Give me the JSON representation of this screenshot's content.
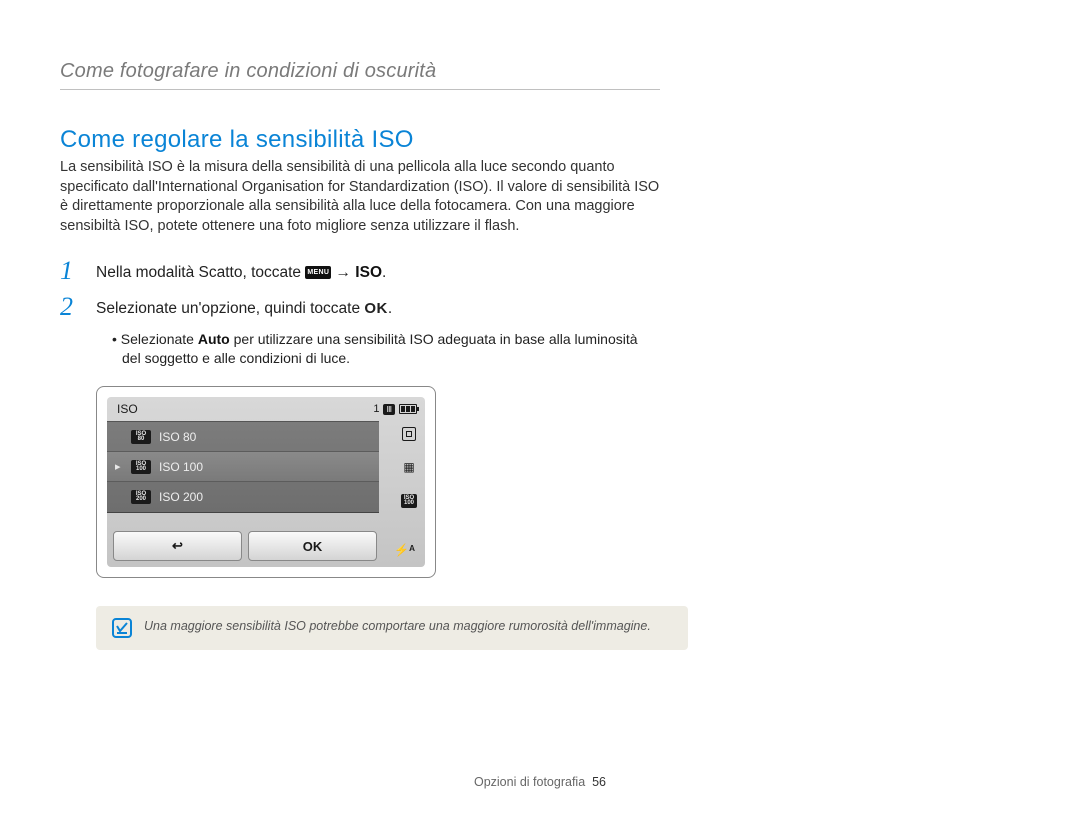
{
  "chapter": {
    "title": "Come fotografare in condizioni di oscurità"
  },
  "section": {
    "title": "Come regolare la sensibilità ISO"
  },
  "intro": "La sensibilità ISO è la misura della sensibilità di una pellicola alla luce secondo quanto specificato dall'International Organisation for Standardization (ISO). Il valore di sensibilità ISO è direttamente proporzionale alla sensibilità alla luce della fotocamera. Con una maggiore sensibiltà ISO, potete ottenere una foto migliore senza utilizzare il flash.",
  "steps": {
    "s1": {
      "num": "1",
      "pre": "Nella modalità Scatto, toccate ",
      "menu": "MENU",
      "arrow": " → ",
      "target": "ISO",
      "post": "."
    },
    "s2": {
      "num": "2",
      "pre": "Selezionate un'opzione, quindi toccate ",
      "ok": "OK",
      "post": "."
    },
    "s2_bullet": {
      "pre": "Selezionate ",
      "bold": "Auto",
      "post": " per utilizzare una sensibilità ISO adeguata in base alla luminosità del soggetto e alle condizioni di luce."
    }
  },
  "lcd": {
    "title": "ISO",
    "shots": "1",
    "items": [
      {
        "chipTop": "ISO",
        "chipBot": "80",
        "label": "ISO 80",
        "selected": false
      },
      {
        "chipTop": "ISO",
        "chipBot": "100",
        "label": "ISO 100",
        "selected": true
      },
      {
        "chipTop": "ISO",
        "chipBot": "200",
        "label": "ISO 200",
        "selected": false
      }
    ],
    "buttons": {
      "back": "↩",
      "ok": "OK"
    },
    "flash": "⚡ᴬ"
  },
  "note": {
    "icon": "✓",
    "text": "Una maggiore sensibilità ISO potrebbe comportare una maggiore rumorosità dell'immagine."
  },
  "footer": {
    "label": "Opzioni di fotografia",
    "page": "56"
  }
}
